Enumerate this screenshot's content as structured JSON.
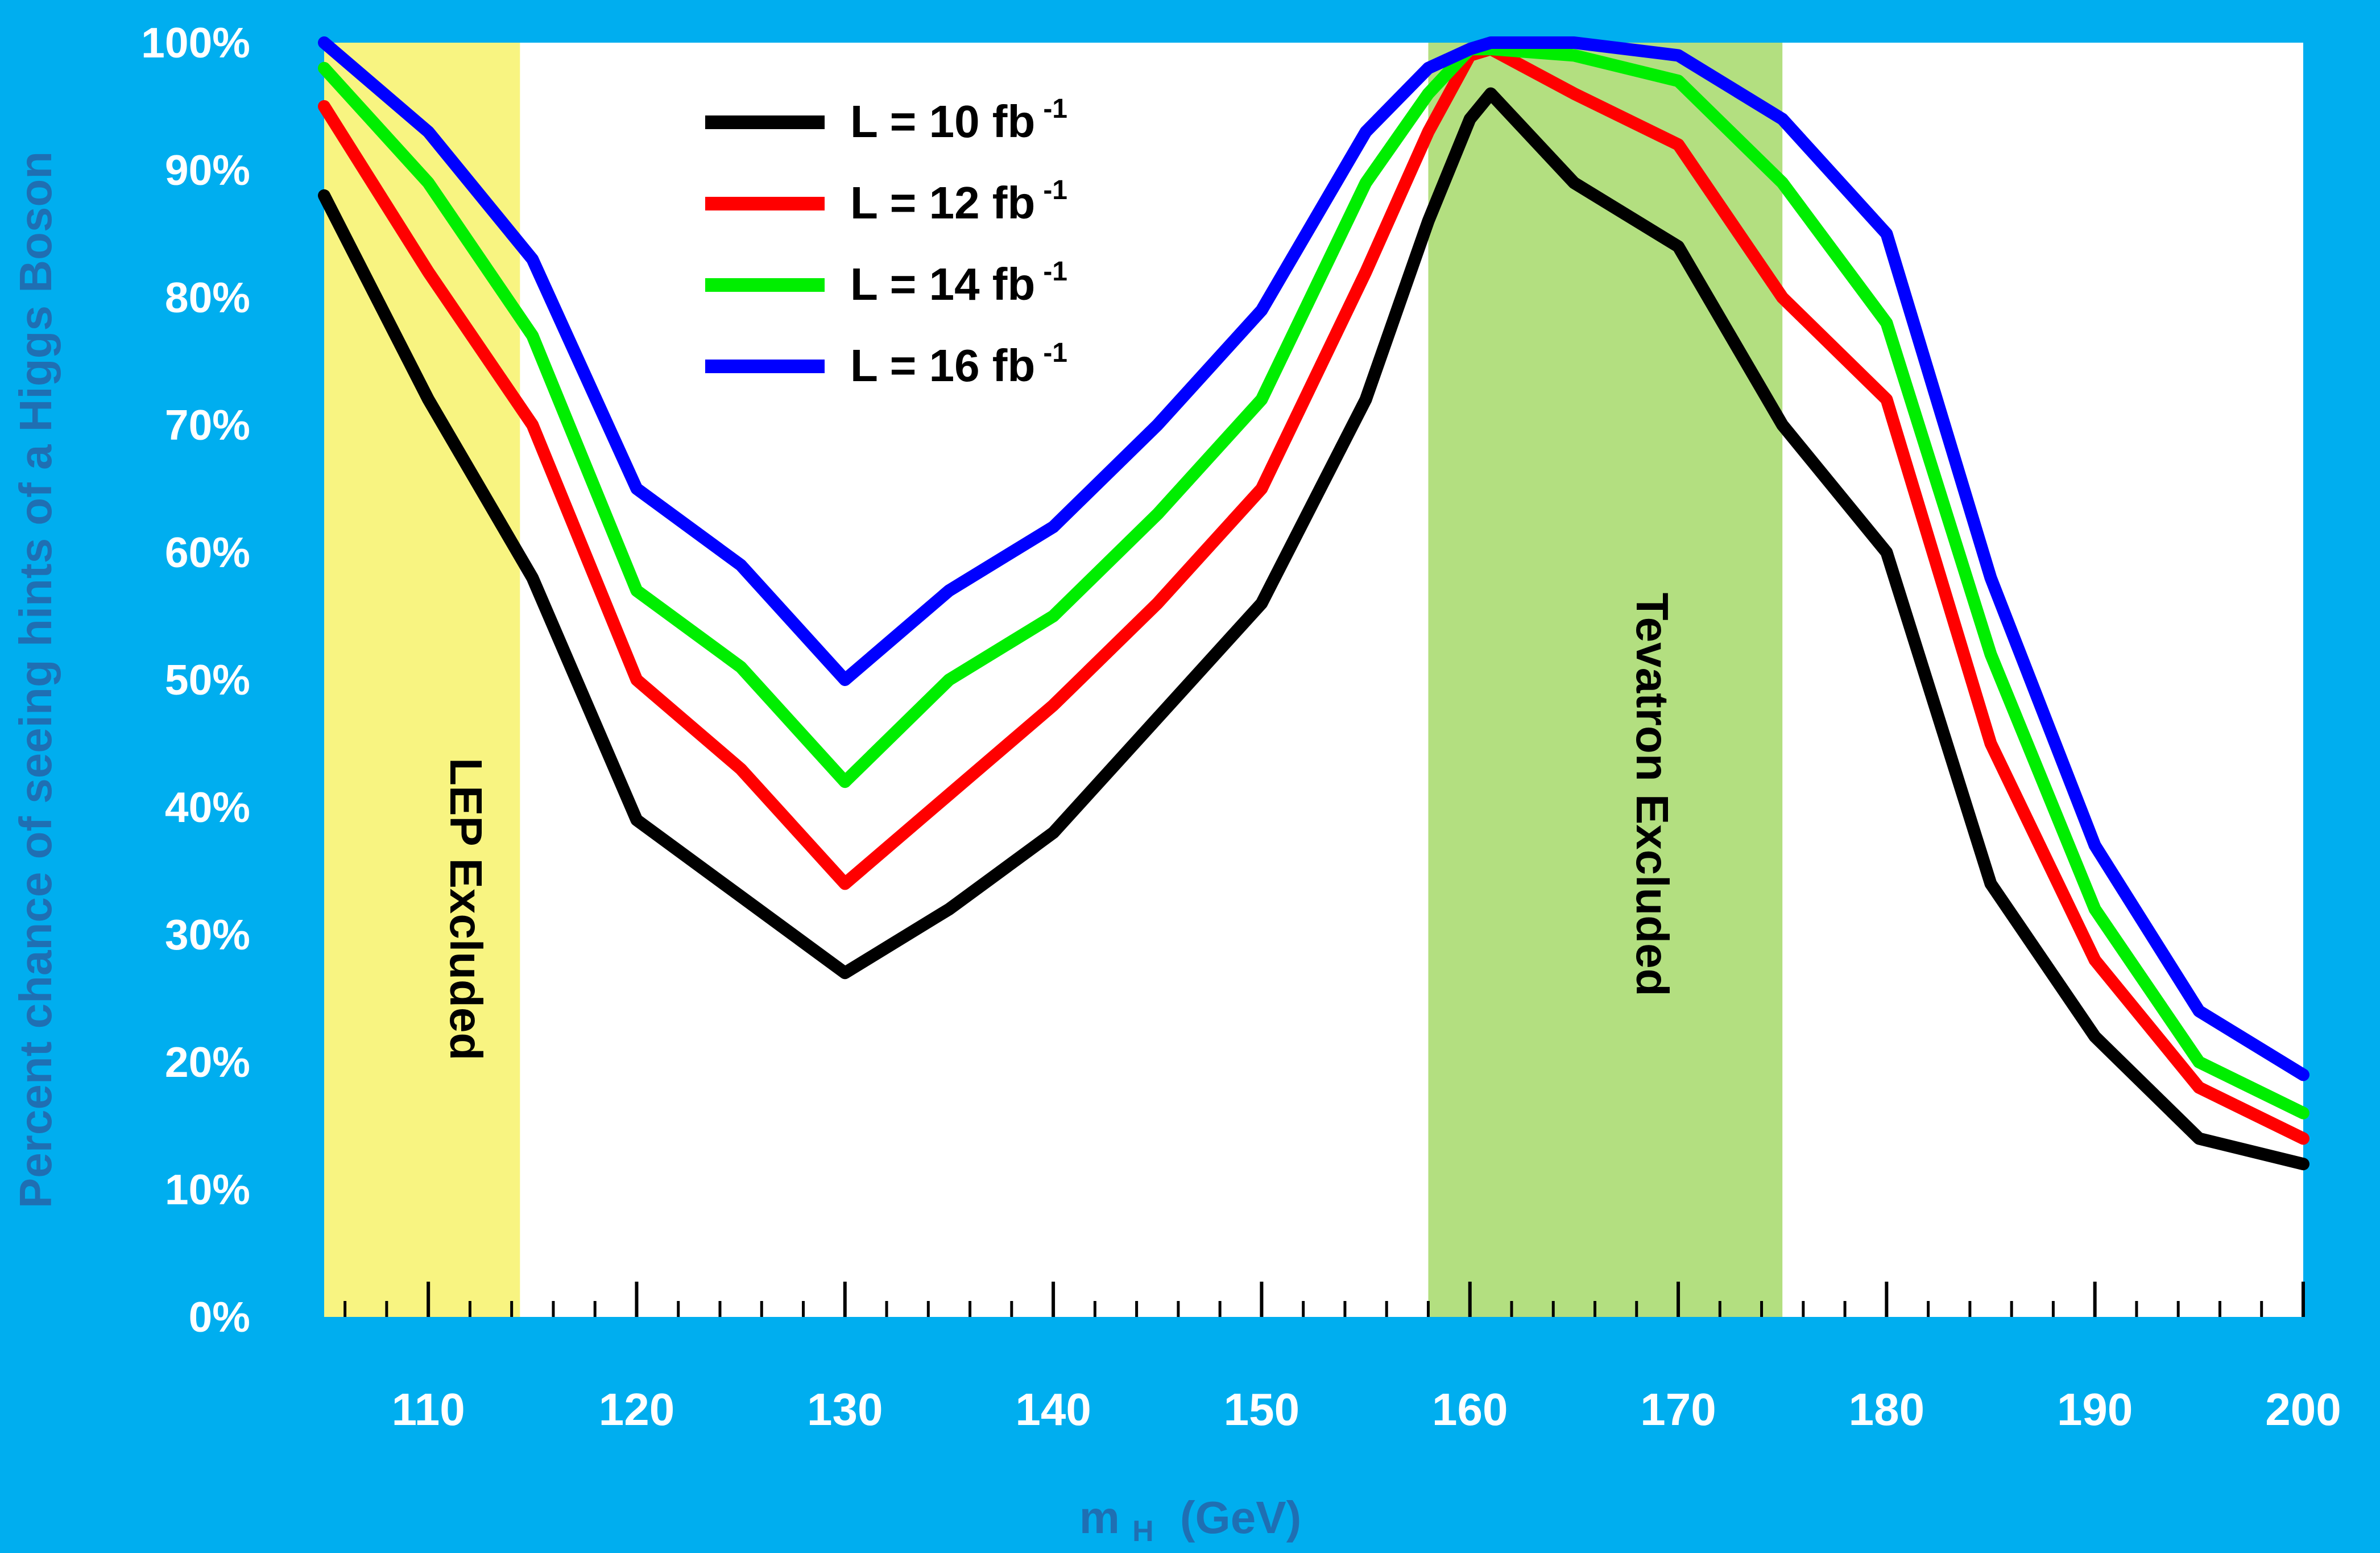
{
  "chart_data": {
    "type": "line",
    "xlabel_main": "m",
    "xlabel_sub": "H",
    "xlabel_unit": "(GeV)",
    "ylabel": "Percent chance of seeing hints of a Higgs Boson",
    "xlim": [
      105,
      200
    ],
    "ylim": [
      0,
      100
    ],
    "x_ticks": [
      110,
      120,
      130,
      140,
      150,
      160,
      170,
      180,
      190,
      200
    ],
    "x_tick_labels": [
      "110",
      "120",
      "130",
      "140",
      "150",
      "160",
      "170",
      "180",
      "190",
      "200"
    ],
    "y_ticks": [
      0,
      10,
      20,
      30,
      40,
      50,
      60,
      70,
      80,
      90,
      100
    ],
    "y_tick_labels": [
      "0%",
      "10%",
      "20%",
      "30%",
      "40%",
      "50%",
      "60%",
      "70%",
      "80%",
      "90%",
      "100%"
    ],
    "legend_position": "top-left",
    "bands": [
      {
        "label": "LEP Excluded",
        "x_start": 105,
        "x_end": 114.4,
        "color": "#f7f26b"
      },
      {
        "label": "Tevatron Excluded",
        "x_start": 158,
        "x_end": 175,
        "color": "#a6d96a"
      }
    ],
    "x": [
      105,
      110,
      115,
      120,
      125,
      130,
      135,
      140,
      145,
      150,
      155,
      158,
      160,
      161,
      165,
      170,
      175,
      180,
      185,
      190,
      195,
      200
    ],
    "series": [
      {
        "name_main": "L = 10 fb",
        "name_sup": "-1",
        "color": "#000000",
        "values": [
          88,
          72,
          58,
          39,
          33,
          27,
          32,
          38,
          47,
          56,
          72,
          86,
          94,
          96,
          89,
          84,
          70,
          60,
          34,
          22,
          14,
          12
        ]
      },
      {
        "name_main": "L = 12 fb",
        "name_sup": "-1",
        "color": "#ff0000",
        "values": [
          95,
          82,
          70,
          50,
          43,
          34,
          41,
          48,
          56,
          65,
          82,
          93,
          99,
          99.5,
          96,
          92,
          80,
          72,
          45,
          28,
          18,
          14
        ]
      },
      {
        "name_main": "L = 14 fb",
        "name_sup": "-1",
        "color": "#00ee00",
        "values": [
          98,
          89,
          77,
          57,
          51,
          42,
          50,
          55,
          63,
          72,
          89,
          96,
          99.5,
          99.5,
          99,
          97,
          89,
          78,
          52,
          32,
          20,
          16
        ]
      },
      {
        "name_main": "L = 16 fb",
        "name_sup": "-1",
        "color": "#0000ff",
        "values": [
          100,
          93,
          83,
          65,
          59,
          50,
          57,
          62,
          70,
          79,
          93,
          98,
          99.5,
          100,
          100,
          99,
          94,
          85,
          58,
          37,
          24,
          19
        ]
      }
    ]
  }
}
